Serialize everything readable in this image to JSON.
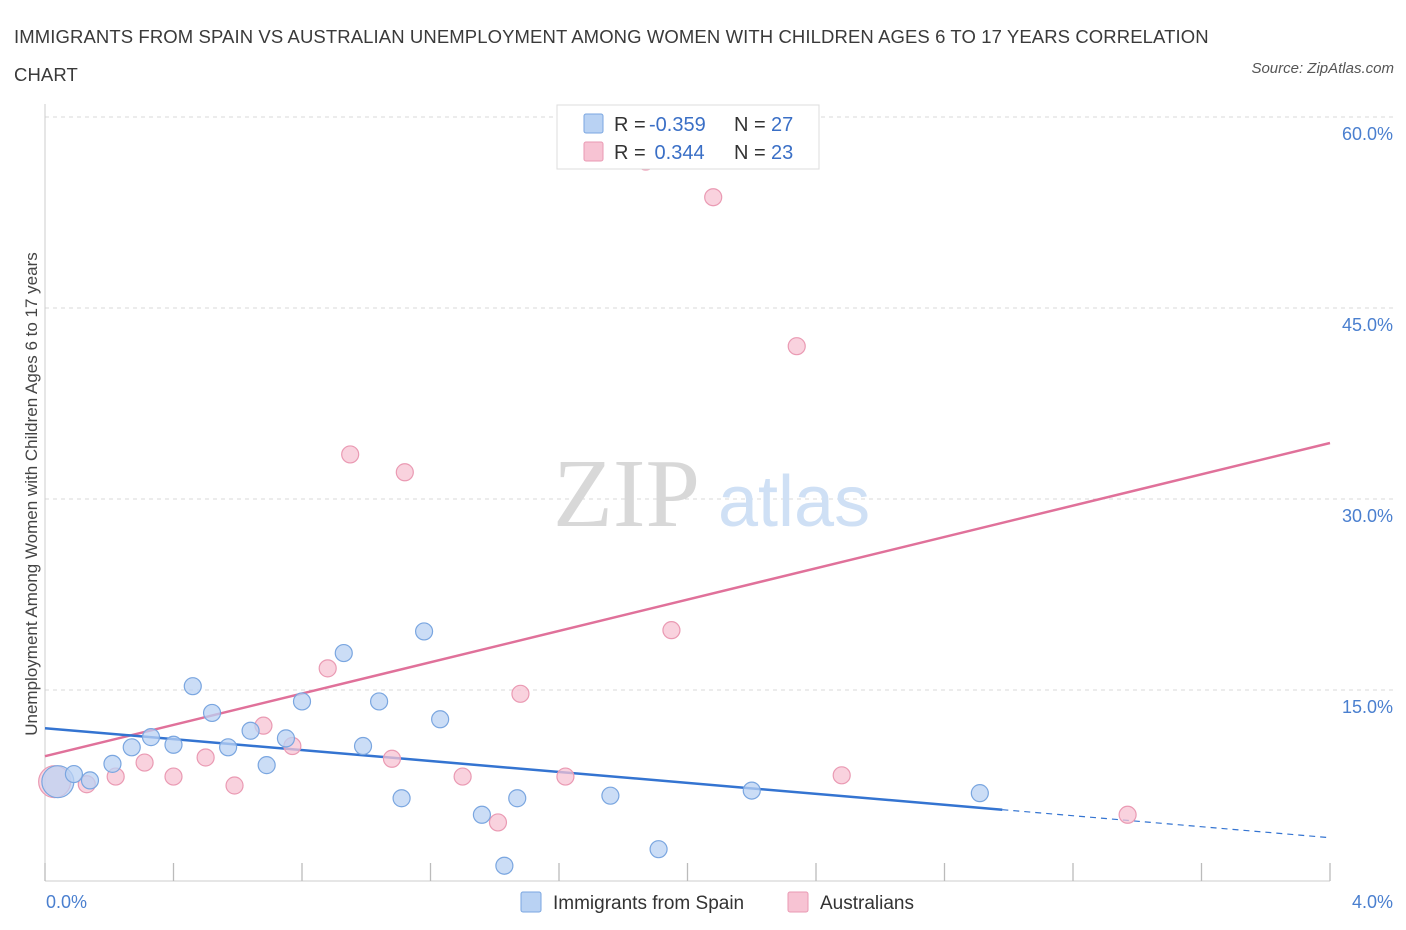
{
  "title": "IMMIGRANTS FROM SPAIN VS AUSTRALIAN UNEMPLOYMENT AMONG WOMEN WITH CHILDREN AGES 6 TO 17 YEARS CORRELATION CHART",
  "source": "Source: ZipAtlas.com",
  "watermark": {
    "zip": "ZIP",
    "atlas": "atlas"
  },
  "colors": {
    "blue_fill": "#b9d2f3",
    "blue_stroke": "#7aa6e0",
    "blue_line": "#3474d1",
    "pink_fill": "#f7c3d3",
    "pink_stroke": "#ea9ab3",
    "pink_line": "#e0719a",
    "axis_label": "#4a7fcf",
    "grid": "#d9d9d9"
  },
  "legend": {
    "rows": [
      {
        "r_label": "R = ",
        "r_value": "-0.359",
        "n_label": "N = ",
        "n_value": "27"
      },
      {
        "r_label": "R = ",
        "r_value": " 0.344",
        "n_label": "N = ",
        "n_value": "23"
      }
    ]
  },
  "chart_data": {
    "type": "scatter",
    "xlabel": "",
    "ylabel": "Unemployment Among Women with Children Ages 6 to 17 years",
    "xlim": [
      0,
      4.0
    ],
    "ylim": [
      0,
      60
    ],
    "x_tick_labels": [
      "0.0%",
      "4.0%"
    ],
    "y_ticks": [
      15,
      30,
      45,
      60
    ],
    "y_tick_labels": [
      "15.0%",
      "30.0%",
      "45.0%",
      "60.0%"
    ],
    "grid": true,
    "legend_position": "bottom-center",
    "series": [
      {
        "name": "Immigrants from Spain",
        "color": "blue",
        "points": [
          {
            "x": 0.04,
            "y": 7.8,
            "big": true
          },
          {
            "x": 0.09,
            "y": 8.4
          },
          {
            "x": 0.14,
            "y": 7.9
          },
          {
            "x": 0.21,
            "y": 9.2
          },
          {
            "x": 0.27,
            "y": 10.5
          },
          {
            "x": 0.33,
            "y": 11.3
          },
          {
            "x": 0.4,
            "y": 10.7
          },
          {
            "x": 0.46,
            "y": 15.3
          },
          {
            "x": 0.52,
            "y": 13.2
          },
          {
            "x": 0.57,
            "y": 10.5
          },
          {
            "x": 0.64,
            "y": 11.8
          },
          {
            "x": 0.69,
            "y": 9.1
          },
          {
            "x": 0.75,
            "y": 11.2
          },
          {
            "x": 0.8,
            "y": 14.1
          },
          {
            "x": 0.93,
            "y": 17.9
          },
          {
            "x": 0.99,
            "y": 10.6
          },
          {
            "x": 1.04,
            "y": 14.1
          },
          {
            "x": 1.11,
            "y": 6.5
          },
          {
            "x": 1.18,
            "y": 19.6
          },
          {
            "x": 1.23,
            "y": 12.7
          },
          {
            "x": 1.36,
            "y": 5.2
          },
          {
            "x": 1.43,
            "y": 1.2
          },
          {
            "x": 1.47,
            "y": 6.5
          },
          {
            "x": 1.76,
            "y": 6.7
          },
          {
            "x": 1.91,
            "y": 2.5
          },
          {
            "x": 2.2,
            "y": 7.1
          },
          {
            "x": 2.91,
            "y": 6.9
          }
        ],
        "trend": {
          "x0": 0.0,
          "y0": 12.0,
          "x1": 2.98,
          "y1": 5.6,
          "dash_to_x": 4.0,
          "dash_to_y": 3.4
        }
      },
      {
        "name": "Australians",
        "color": "pink",
        "points": [
          {
            "x": 0.03,
            "y": 7.8,
            "big": true
          },
          {
            "x": 0.13,
            "y": 7.6
          },
          {
            "x": 0.22,
            "y": 8.2
          },
          {
            "x": 0.31,
            "y": 9.3
          },
          {
            "x": 0.4,
            "y": 8.2
          },
          {
            "x": 0.5,
            "y": 9.7
          },
          {
            "x": 0.59,
            "y": 7.5
          },
          {
            "x": 0.68,
            "y": 12.2
          },
          {
            "x": 0.77,
            "y": 10.6
          },
          {
            "x": 0.88,
            "y": 16.7
          },
          {
            "x": 0.95,
            "y": 33.5
          },
          {
            "x": 1.08,
            "y": 9.6
          },
          {
            "x": 1.12,
            "y": 32.1
          },
          {
            "x": 1.3,
            "y": 8.2
          },
          {
            "x": 1.41,
            "y": 4.6
          },
          {
            "x": 1.48,
            "y": 14.7
          },
          {
            "x": 1.62,
            "y": 8.2
          },
          {
            "x": 1.87,
            "y": 56.5
          },
          {
            "x": 1.95,
            "y": 19.7
          },
          {
            "x": 2.08,
            "y": 53.7
          },
          {
            "x": 2.34,
            "y": 42.0
          },
          {
            "x": 2.48,
            "y": 8.3
          },
          {
            "x": 3.37,
            "y": 5.2
          }
        ],
        "trend": {
          "x0": 0.0,
          "y0": 9.8,
          "x1": 4.0,
          "y1": 34.4
        }
      }
    ]
  }
}
